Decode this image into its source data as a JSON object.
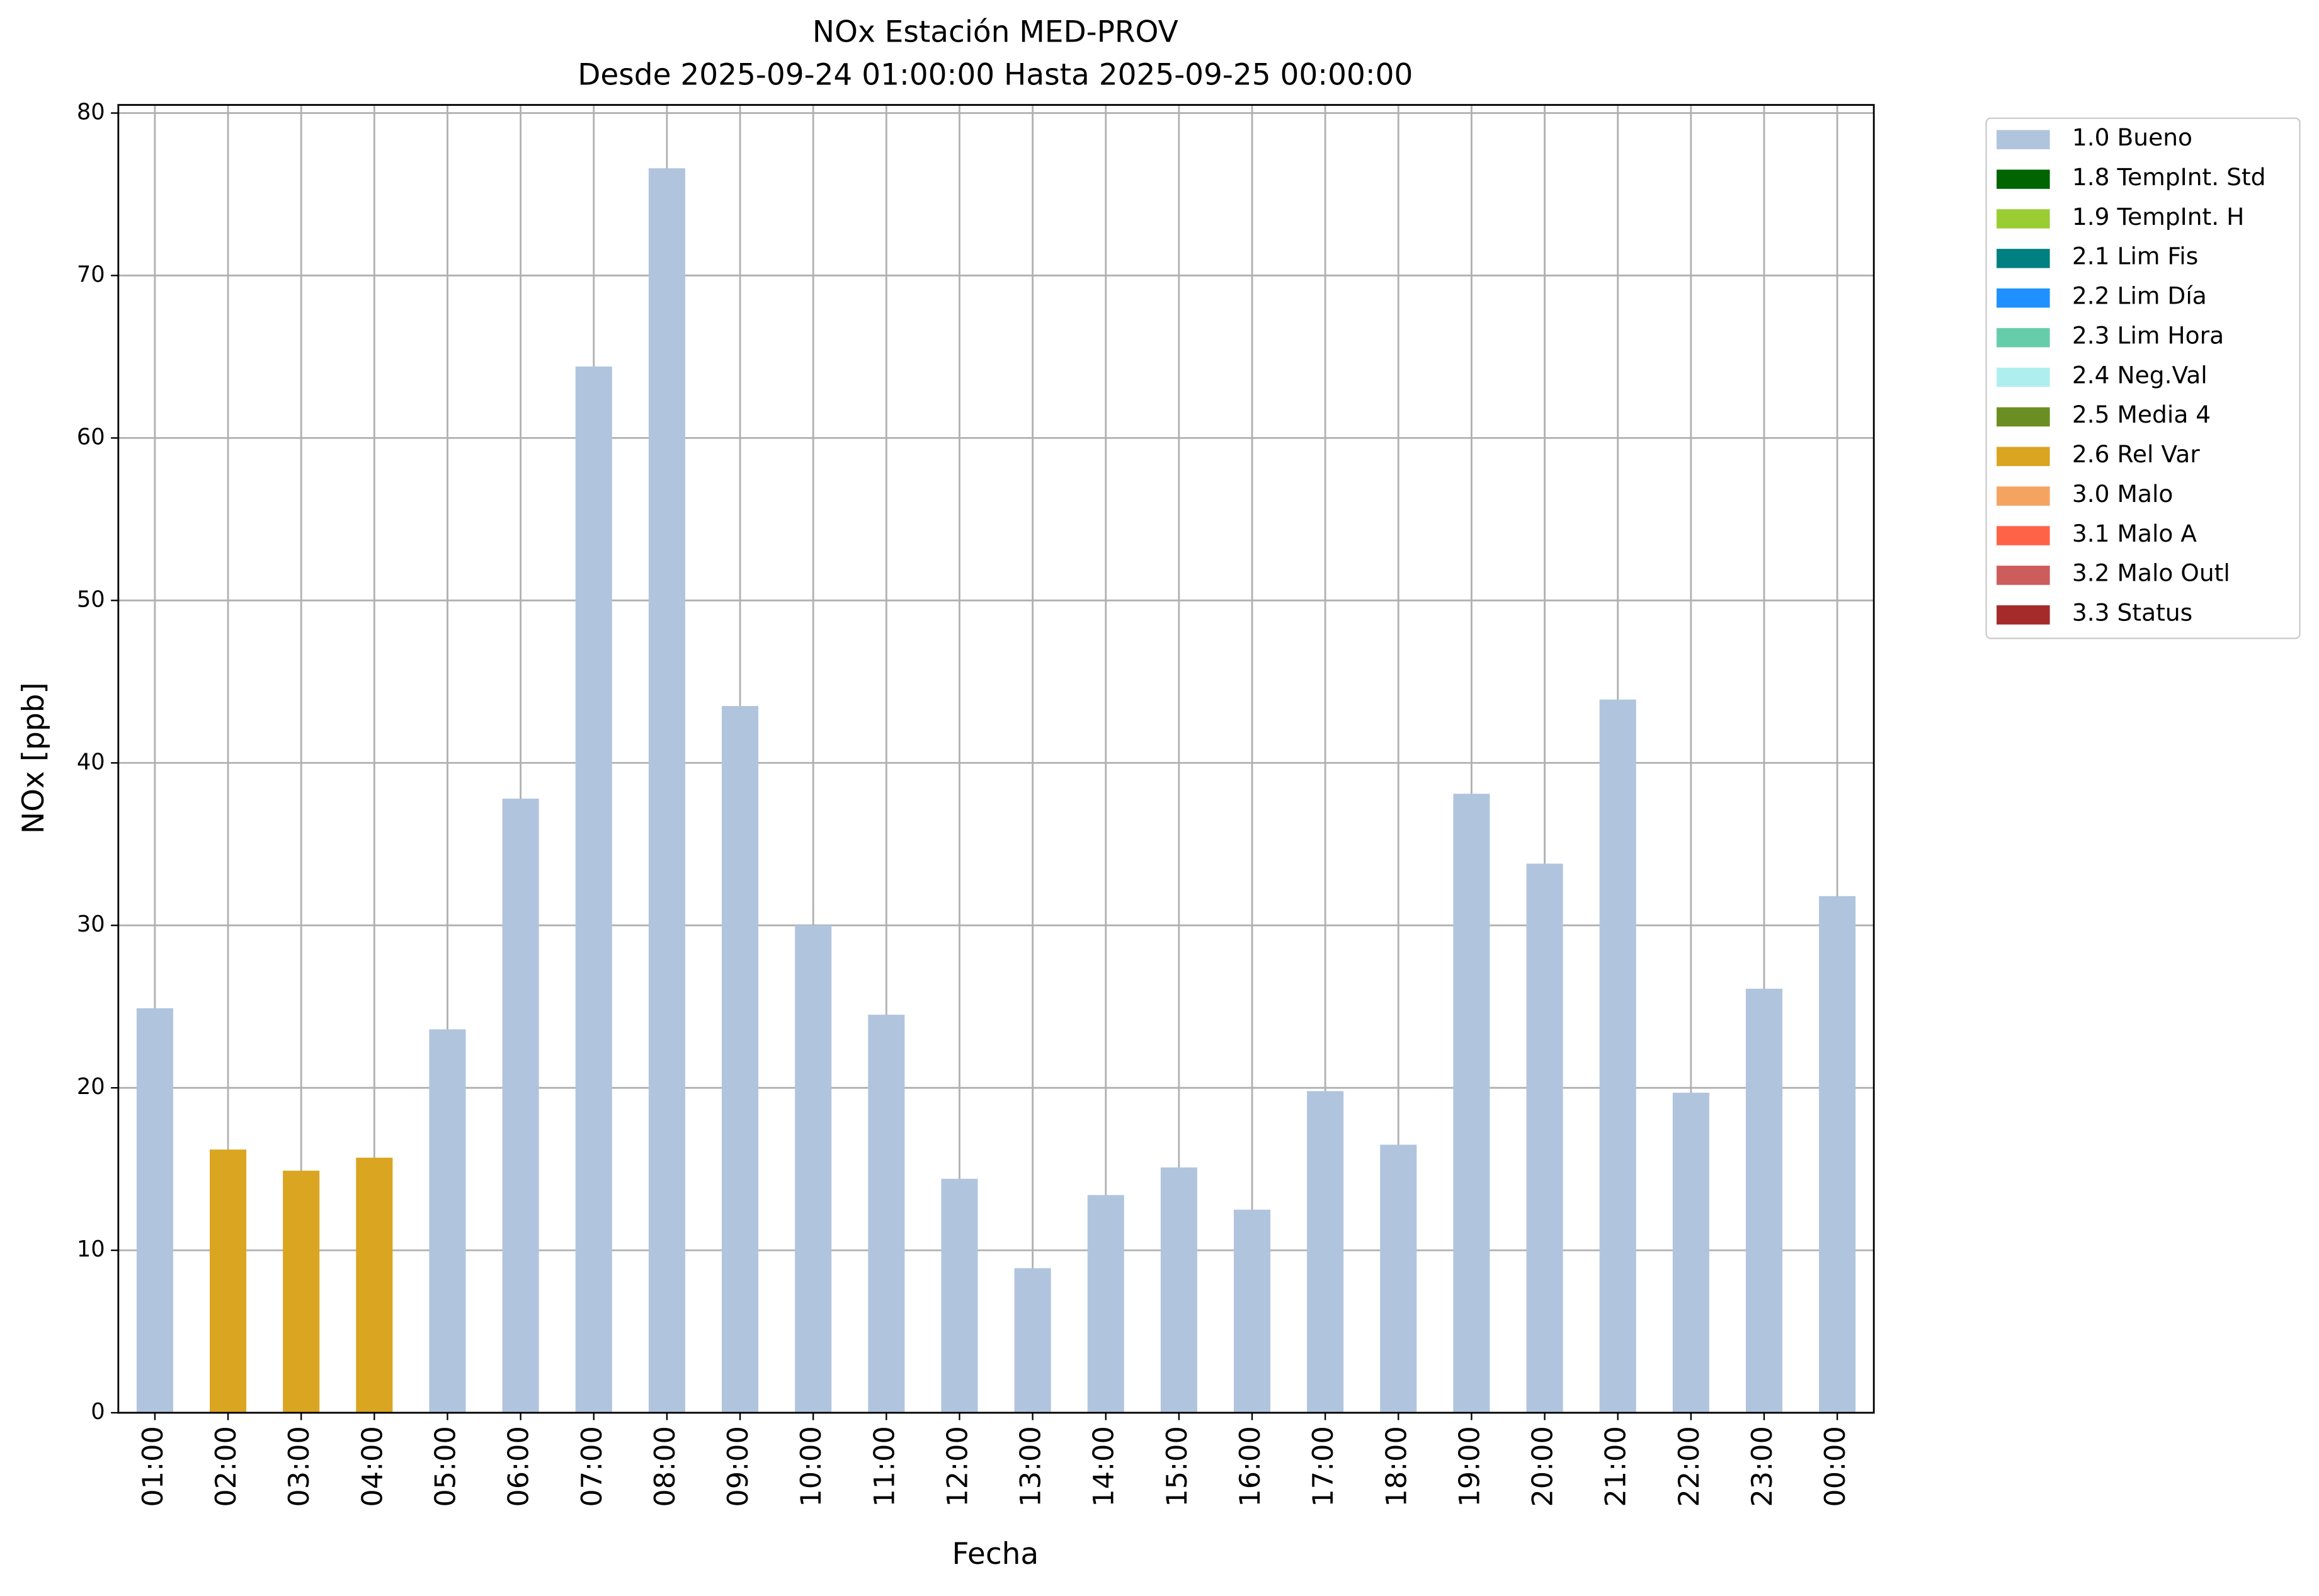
{
  "chart_data": {
    "type": "bar",
    "stacked": true,
    "title": "NOx Estación MED-PROV",
    "subtitle": "Desde 2025-09-24 01:00:00 Hasta 2025-09-25 00:00:00",
    "x_label": "Fecha",
    "y_label": "NOx [ppb]",
    "categories": [
      "01:00",
      "02:00",
      "03:00",
      "04:00",
      "05:00",
      "06:00",
      "07:00",
      "08:00",
      "09:00",
      "10:00",
      "11:00",
      "12:00",
      "13:00",
      "14:00",
      "15:00",
      "16:00",
      "17:00",
      "18:00",
      "19:00",
      "20:00",
      "21:00",
      "22:00",
      "23:00",
      "00:00"
    ],
    "ylim": [
      0,
      80.5
    ],
    "yticks": [
      0,
      10,
      20,
      30,
      40,
      50,
      60,
      70,
      80
    ],
    "grid": true,
    "legend": "outside right",
    "series": [
      {
        "name": "1.0 Bueno",
        "color": "#b0c4de",
        "values": [
          24.9,
          null,
          null,
          null,
          23.6,
          37.8,
          64.4,
          76.6,
          43.5,
          30.0,
          24.5,
          14.4,
          8.9,
          13.4,
          15.1,
          12.5,
          19.8,
          16.5,
          38.1,
          33.8,
          43.9,
          19.7,
          26.1,
          31.8
        ]
      },
      {
        "name": "1.8 TempInt. Std",
        "color": "#006400",
        "values": [
          null,
          null,
          null,
          null,
          null,
          null,
          null,
          null,
          null,
          null,
          null,
          null,
          null,
          null,
          null,
          null,
          null,
          null,
          null,
          null,
          null,
          null,
          null,
          null
        ]
      },
      {
        "name": "1.9 TempInt. H",
        "color": "#9acd32",
        "values": [
          null,
          null,
          null,
          null,
          null,
          null,
          null,
          null,
          null,
          null,
          null,
          null,
          null,
          null,
          null,
          null,
          null,
          null,
          null,
          null,
          null,
          null,
          null,
          null
        ]
      },
      {
        "name": "2.1 Lim Fis",
        "color": "#008080",
        "values": [
          null,
          null,
          null,
          null,
          null,
          null,
          null,
          null,
          null,
          null,
          null,
          null,
          null,
          null,
          null,
          null,
          null,
          null,
          null,
          null,
          null,
          null,
          null,
          null
        ]
      },
      {
        "name": "2.2 Lim Día",
        "color": "#1e90ff",
        "values": [
          null,
          null,
          null,
          null,
          null,
          null,
          null,
          null,
          null,
          null,
          null,
          null,
          null,
          null,
          null,
          null,
          null,
          null,
          null,
          null,
          null,
          null,
          null,
          null
        ]
      },
      {
        "name": "2.3 Lim Hora",
        "color": "#66cdaa",
        "values": [
          null,
          null,
          null,
          null,
          null,
          null,
          null,
          null,
          null,
          null,
          null,
          null,
          null,
          null,
          null,
          null,
          null,
          null,
          null,
          null,
          null,
          null,
          null,
          null
        ]
      },
      {
        "name": "2.4 Neg.Val",
        "color": "#afeeee",
        "values": [
          null,
          null,
          null,
          null,
          null,
          null,
          null,
          null,
          null,
          null,
          null,
          null,
          null,
          null,
          null,
          null,
          null,
          null,
          null,
          null,
          null,
          null,
          null,
          null
        ]
      },
      {
        "name": "2.5 Media 4",
        "color": "#6b8e23",
        "values": [
          null,
          null,
          null,
          null,
          null,
          null,
          null,
          null,
          null,
          null,
          null,
          null,
          null,
          null,
          null,
          null,
          null,
          null,
          null,
          null,
          null,
          null,
          null,
          null
        ]
      },
      {
        "name": "2.6 Rel Var",
        "color": "#daa520",
        "values": [
          null,
          16.2,
          14.9,
          15.7,
          null,
          null,
          null,
          null,
          null,
          null,
          null,
          null,
          null,
          null,
          null,
          null,
          null,
          null,
          null,
          null,
          null,
          null,
          null,
          null
        ]
      },
      {
        "name": "3.0 Malo",
        "color": "#f4a460",
        "values": [
          null,
          null,
          null,
          null,
          null,
          null,
          null,
          null,
          null,
          null,
          null,
          null,
          null,
          null,
          null,
          null,
          null,
          null,
          null,
          null,
          null,
          null,
          null,
          null
        ]
      },
      {
        "name": "3.1 Malo A",
        "color": "#ff6347",
        "values": [
          null,
          null,
          null,
          null,
          null,
          null,
          null,
          null,
          null,
          null,
          null,
          null,
          null,
          null,
          null,
          null,
          null,
          null,
          null,
          null,
          null,
          null,
          null,
          null
        ]
      },
      {
        "name": "3.2 Malo Outl",
        "color": "#cd5c5c",
        "values": [
          null,
          null,
          null,
          null,
          null,
          null,
          null,
          null,
          null,
          null,
          null,
          null,
          null,
          null,
          null,
          null,
          null,
          null,
          null,
          null,
          null,
          null,
          null,
          null
        ]
      },
      {
        "name": "3.3 Status",
        "color": "#a52a2a",
        "values": [
          null,
          null,
          null,
          null,
          null,
          null,
          null,
          null,
          null,
          null,
          null,
          null,
          null,
          null,
          null,
          null,
          null,
          null,
          null,
          null,
          null,
          null,
          null,
          null
        ]
      }
    ]
  }
}
